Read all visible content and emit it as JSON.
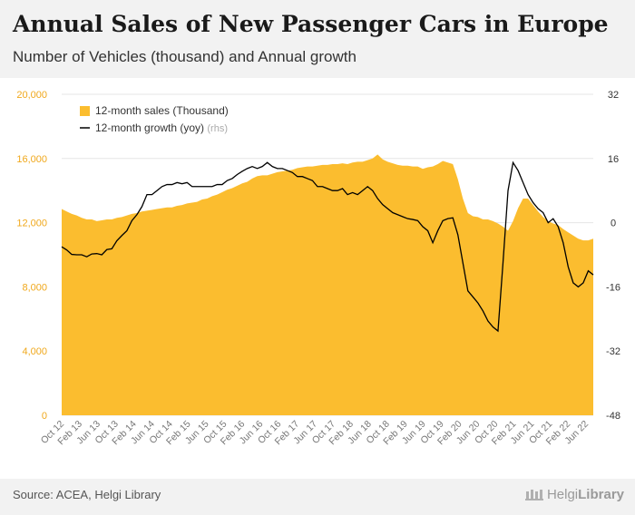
{
  "header": {
    "title": "Annual Sales of New Passenger Cars in Europe",
    "subtitle": "Number of Vehicles (thousand) and Annual growth"
  },
  "footer": {
    "source": "Source: ACEA, Helgi Library",
    "brand_part1": "Helgi",
    "brand_part2": "Library"
  },
  "colors": {
    "area": "#fbbd2f",
    "line": "#000000",
    "axis_text": "#777777",
    "grid": "#e6e6e6",
    "left_tick": "#f0a81c"
  },
  "chart_data": {
    "type": "area",
    "x_ticks": [
      "Oct 12",
      "Feb 13",
      "Jun 13",
      "Oct 13",
      "Feb 14",
      "Jun 14",
      "Oct 14",
      "Feb 15",
      "Jun 15",
      "Oct 15",
      "Feb 16",
      "Jun 16",
      "Oct 16",
      "Feb 17",
      "Jun 17",
      "Oct 17",
      "Feb 18",
      "Jun 18",
      "Oct 18",
      "Feb 19",
      "Jun 19",
      "Oct 19",
      "Feb 20",
      "Jun 20",
      "Oct 20",
      "Feb 21",
      "Jun 21",
      "Oct 21",
      "Feb 22",
      "Jun 22"
    ],
    "y_left": {
      "ticks": [
        "0",
        "4,000",
        "8,000",
        "12,000",
        "16,000",
        "20,000"
      ],
      "min": 0,
      "max": 20000
    },
    "y_right": {
      "ticks": [
        "-48",
        "-32",
        "-16",
        "0",
        "16",
        "32"
      ],
      "min": -48,
      "max": 32
    },
    "legend": [
      {
        "label": "12-month sales (Thousand)",
        "kind": "area"
      },
      {
        "label": "12-month growth (yoy)",
        "suffix": "(rhs)",
        "kind": "line"
      }
    ],
    "series": [
      {
        "name": "12-month sales (Thousand)",
        "axis": "left",
        "values": [
          12850,
          12700,
          12550,
          12450,
          12300,
          12200,
          12200,
          12100,
          12150,
          12200,
          12200,
          12300,
          12350,
          12450,
          12550,
          12600,
          12700,
          12750,
          12800,
          12850,
          12900,
          12950,
          12950,
          13050,
          13100,
          13200,
          13250,
          13300,
          13450,
          13500,
          13650,
          13750,
          13900,
          14050,
          14150,
          14300,
          14450,
          14550,
          14750,
          14900,
          14950,
          14950,
          15050,
          15150,
          15200,
          15250,
          15300,
          15400,
          15450,
          15500,
          15500,
          15550,
          15600,
          15600,
          15650,
          15650,
          15700,
          15650,
          15750,
          15800,
          15800,
          15900,
          16000,
          16250,
          15950,
          15800,
          15700,
          15600,
          15550,
          15550,
          15500,
          15500,
          15350,
          15450,
          15500,
          15650,
          15850,
          15750,
          15650,
          14700,
          13500,
          12600,
          12400,
          12350,
          12200,
          12200,
          12100,
          11950,
          11750,
          11500,
          12100,
          12900,
          13500,
          13500,
          13100,
          12700,
          12350,
          12100,
          11950,
          11850,
          11600,
          11400,
          11200,
          11000,
          10900,
          10900,
          11000
        ]
      },
      {
        "name": "12-month growth (yoy)",
        "axis": "right",
        "values": [
          -6,
          -6.8,
          -7.9,
          -8,
          -8,
          -8.5,
          -7.8,
          -7.7,
          -8,
          -6.7,
          -6.5,
          -4.5,
          -3.2,
          -2,
          0.5,
          2,
          4,
          7,
          7,
          8,
          9,
          9.5,
          9.5,
          10,
          9.7,
          10,
          9,
          9,
          9,
          9,
          9,
          9.5,
          9.5,
          10.5,
          11,
          12,
          12.8,
          13.5,
          14,
          13.5,
          14,
          15,
          14,
          13.5,
          13.5,
          13,
          12.5,
          11.5,
          11.5,
          11,
          10.5,
          9,
          9,
          8.5,
          8,
          8,
          8.5,
          7,
          7.5,
          7,
          8,
          9,
          8,
          6,
          4.5,
          3.5,
          2.5,
          2,
          1.5,
          1,
          0.8,
          0.5,
          -1,
          -2,
          -5,
          -2,
          0.5,
          1,
          1.2,
          -3,
          -10,
          -17,
          -18.5,
          -20,
          -22,
          -24.5,
          -26,
          -27,
          -10,
          8,
          15,
          13,
          10,
          7,
          5,
          3.5,
          2.5,
          0,
          1,
          -1,
          -5,
          -11,
          -15,
          -16,
          -15,
          -12,
          -13
        ]
      }
    ]
  }
}
